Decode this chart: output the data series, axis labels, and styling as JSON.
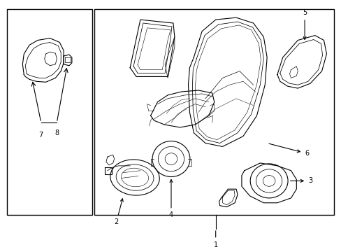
{
  "background_color": "#ffffff",
  "line_color": "#000000",
  "fig_width": 4.89,
  "fig_height": 3.6,
  "dpi": 100
}
